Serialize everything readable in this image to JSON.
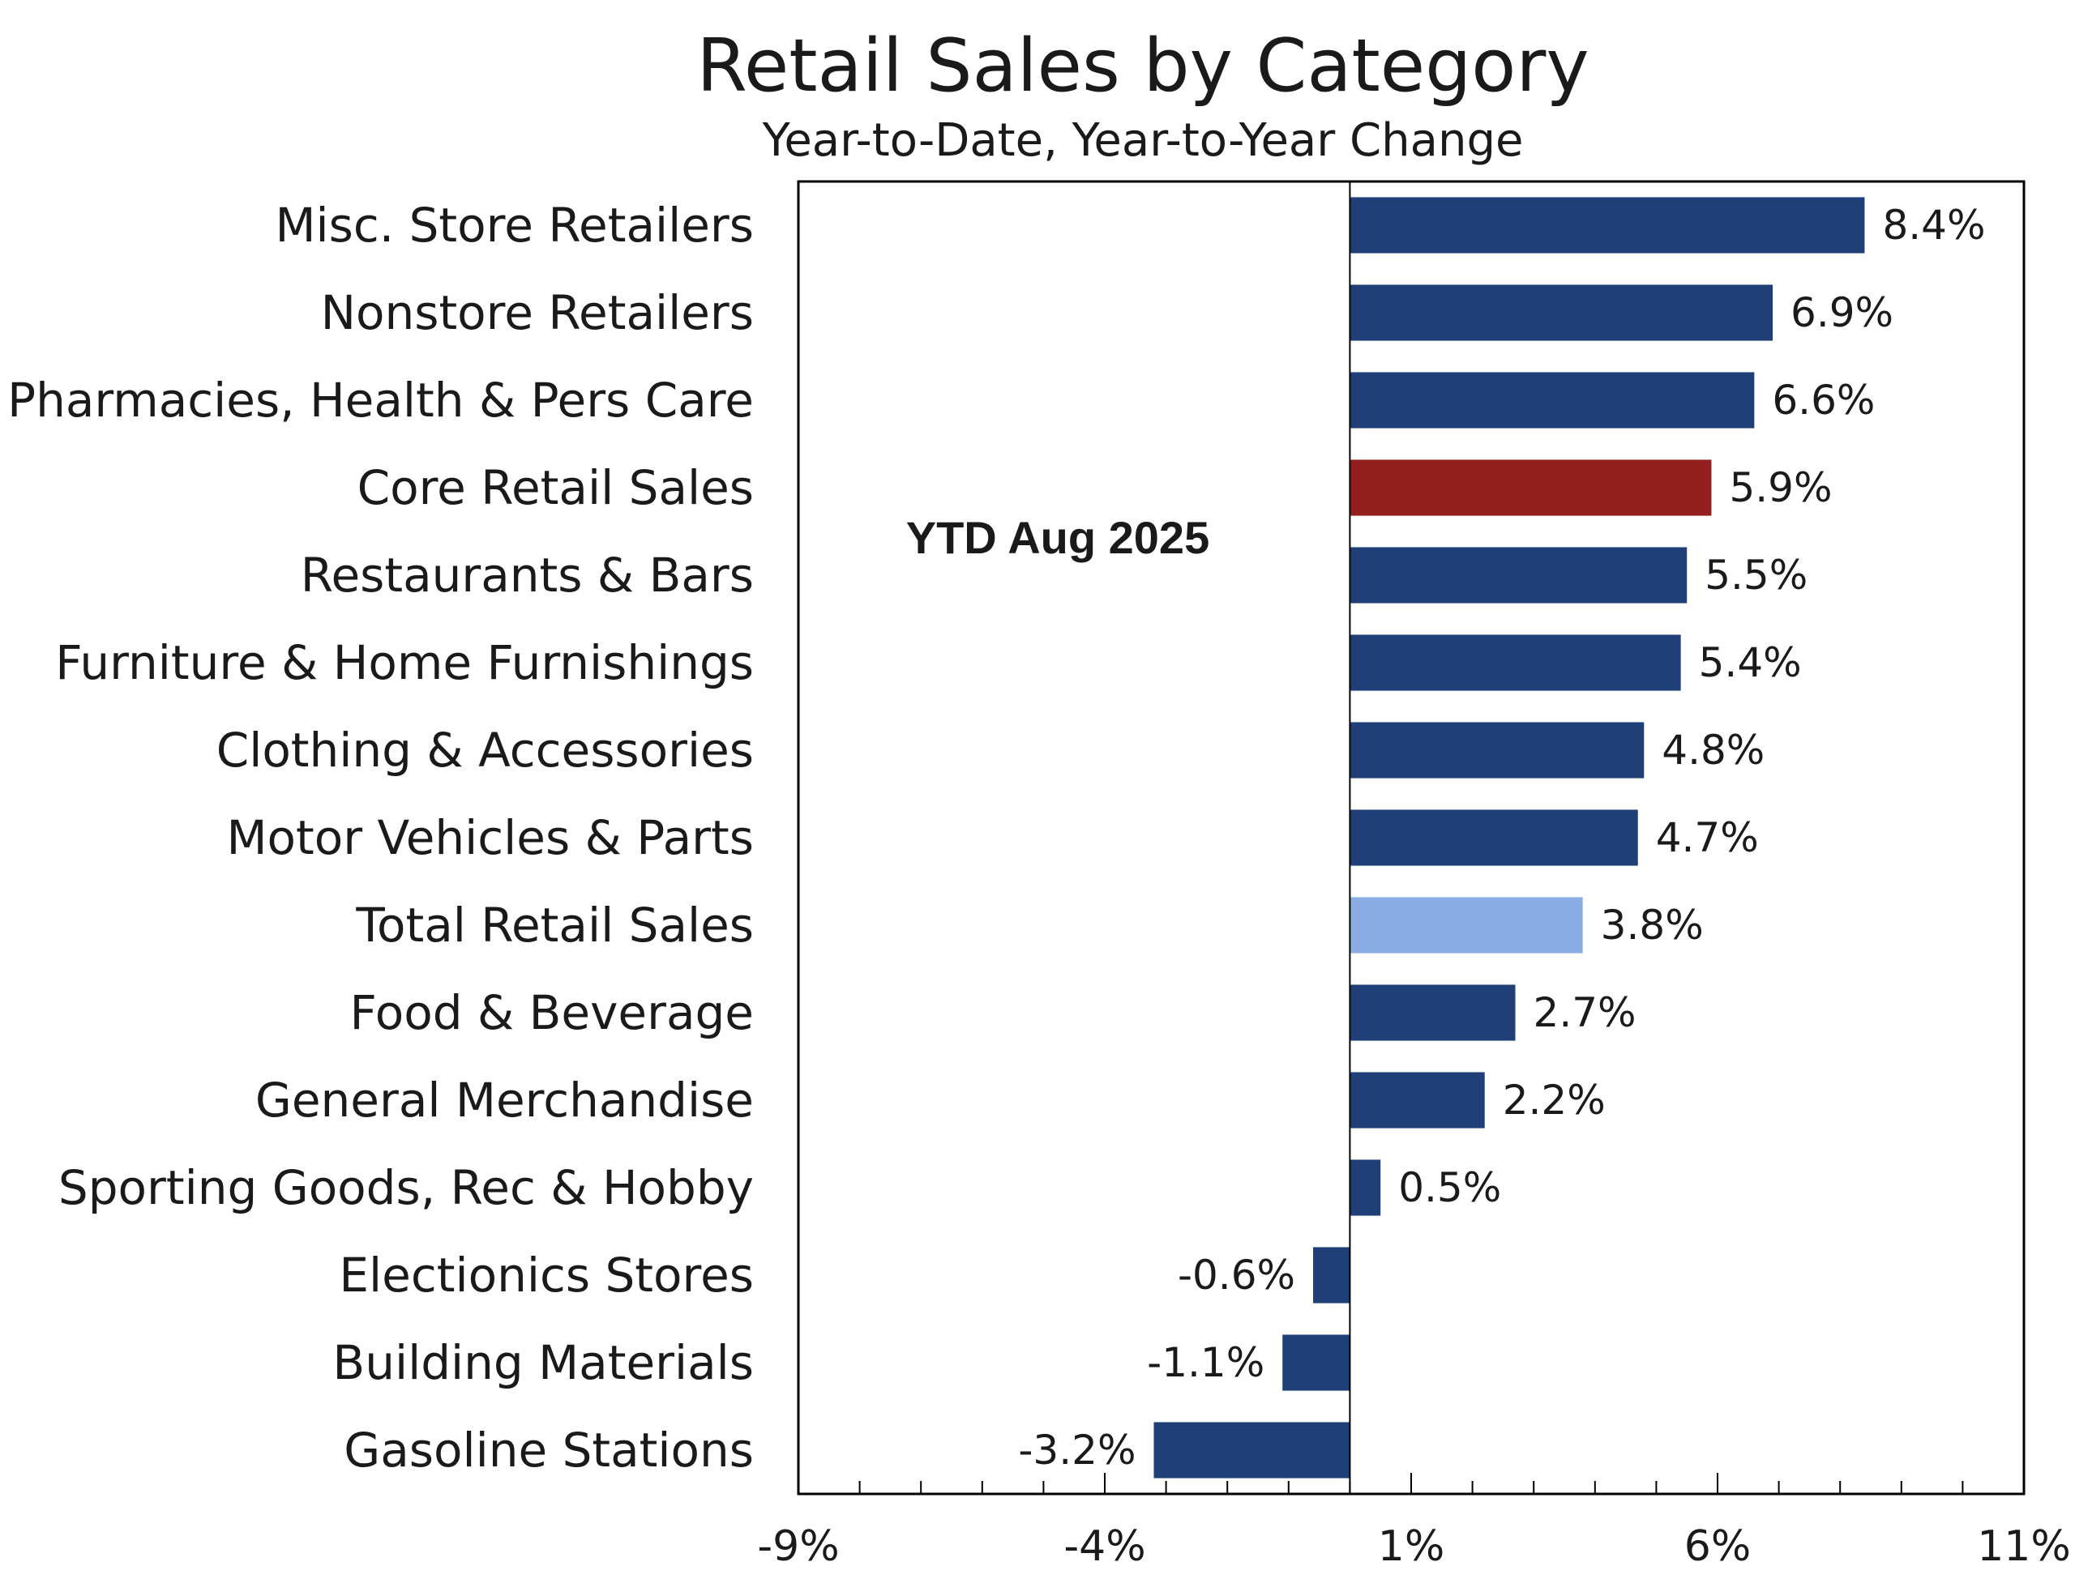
{
  "chart_data": {
    "type": "bar",
    "orientation": "horizontal",
    "title": "Retail Sales by Category",
    "subtitle": "Year-to-Date, Year-to-Year Change",
    "annotation": "YTD Aug 2025",
    "categories": [
      "Misc. Store Retailers",
      "Nonstore Retailers",
      "Pharmacies, Health & Pers Care",
      "Core Retail Sales",
      "Restaurants & Bars",
      "Furniture & Home Furnishings",
      "Clothing & Accessories",
      "Motor Vehicles & Parts",
      "Total Retail Sales",
      "Food & Beverage",
      "General Merchandise",
      "Sporting Goods, Rec & Hobby",
      "Electionics Stores",
      "Building Materials",
      "Gasoline Stations"
    ],
    "values": [
      8.4,
      6.9,
      6.6,
      5.9,
      5.5,
      5.4,
      4.8,
      4.7,
      3.8,
      2.7,
      2.2,
      0.5,
      -0.6,
      -1.1,
      -3.2
    ],
    "value_labels": [
      "8.4%",
      "6.9%",
      "6.6%",
      "5.9%",
      "5.5%",
      "5.4%",
      "4.8%",
      "4.7%",
      "3.8%",
      "2.7%",
      "2.2%",
      "0.5%",
      "-0.6%",
      "-1.1%",
      "-3.2%"
    ],
    "bar_colors": [
      "#1f3f76",
      "#1f3f76",
      "#1f3f76",
      "#931e1e",
      "#1f3f76",
      "#1f3f76",
      "#1f3f76",
      "#1f3f76",
      "#8aaee3",
      "#1f3f76",
      "#1f3f76",
      "#1f3f76",
      "#1f3f76",
      "#1f3f76",
      "#1f3f76"
    ],
    "xlim": [
      -9,
      11
    ],
    "baseline": 0,
    "x_ticks": [
      -9,
      -4,
      1,
      6,
      11
    ],
    "x_tick_labels": [
      "-9%",
      "-4%",
      "1%",
      "6%",
      "11%"
    ],
    "x_minor_step": 1,
    "grid": false,
    "legend": "none"
  }
}
